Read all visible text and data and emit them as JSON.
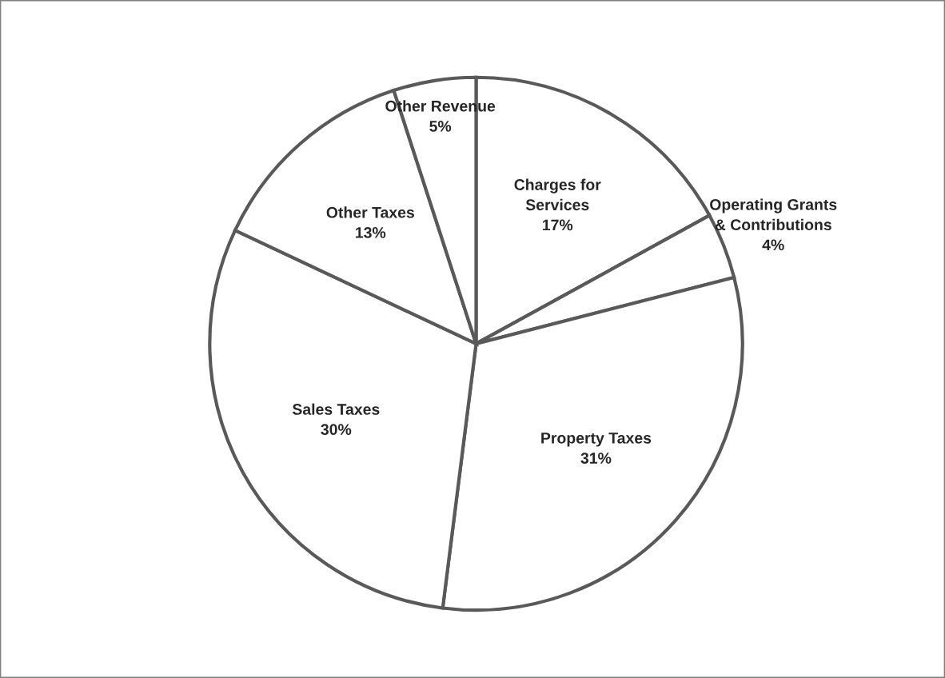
{
  "chart_data": {
    "type": "pie",
    "categories": [
      "Charges for Services",
      "Operating Grants & Contributions",
      "Property Taxes",
      "Sales Taxes",
      "Other Taxes",
      "Other Revenue"
    ],
    "values": [
      17,
      4,
      31,
      30,
      13,
      5
    ],
    "colors": [
      "#ffffff",
      "#ffffff",
      "#ffffff",
      "#ffffff",
      "#ffffff",
      "#ffffff"
    ],
    "value_labels": [
      "17%",
      "4%",
      "31%",
      "30%",
      "13%",
      "5%"
    ],
    "legend": false
  }
}
